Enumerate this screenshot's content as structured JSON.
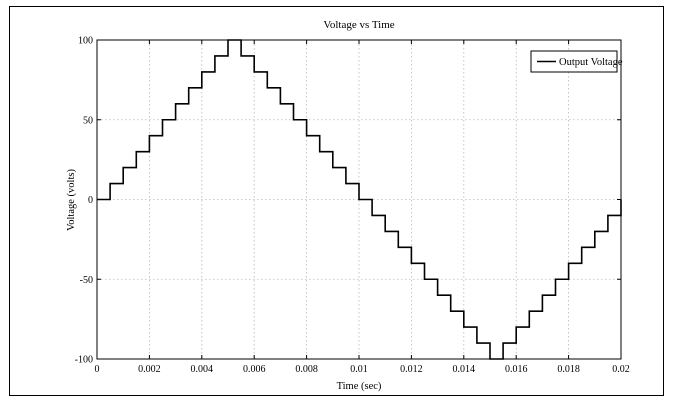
{
  "chart_data": {
    "type": "line",
    "title": "Voltage vs Time",
    "xlabel": "Time (sec)",
    "ylabel": "Voltage (volts)",
    "xlim": [
      0,
      0.02
    ],
    "ylim": [
      -100,
      100
    ],
    "grid": true,
    "legend_position": "top-right",
    "x_ticks": [
      0,
      0.002,
      0.004,
      0.006,
      0.008,
      0.01,
      0.012,
      0.014,
      0.016,
      0.018,
      0.02
    ],
    "x_tick_labels": [
      "0",
      "0.002",
      "0.004",
      "0.006",
      "0.008",
      "0.01",
      "0.012",
      "0.014",
      "0.016",
      "0.018",
      "0.02"
    ],
    "y_ticks": [
      -100,
      -50,
      0,
      50,
      100
    ],
    "y_tick_labels": [
      "-100",
      "-50",
      "0",
      "50",
      "100"
    ],
    "series": [
      {
        "name": "Output Voltage",
        "color": "#000000",
        "step": true,
        "x": [
          0,
          0.0005,
          0.001,
          0.0015,
          0.002,
          0.0025,
          0.003,
          0.0035,
          0.004,
          0.0045,
          0.005,
          0.0055,
          0.006,
          0.0065,
          0.007,
          0.0075,
          0.008,
          0.0085,
          0.009,
          0.0095,
          0.01,
          0.0105,
          0.011,
          0.0115,
          0.012,
          0.0125,
          0.013,
          0.0135,
          0.014,
          0.0145,
          0.015,
          0.0155,
          0.016,
          0.0165,
          0.017,
          0.0175,
          0.018,
          0.0185,
          0.019,
          0.0195,
          0.02
        ],
        "y": [
          0,
          10,
          20,
          30,
          40,
          50,
          60,
          70,
          80,
          90,
          100,
          90,
          80,
          70,
          60,
          50,
          40,
          30,
          20,
          10,
          0,
          -10,
          -20,
          -30,
          -40,
          -50,
          -60,
          -70,
          -80,
          -90,
          -100,
          -90,
          -80,
          -70,
          -60,
          -50,
          -40,
          -30,
          -20,
          -10,
          0
        ]
      }
    ]
  }
}
